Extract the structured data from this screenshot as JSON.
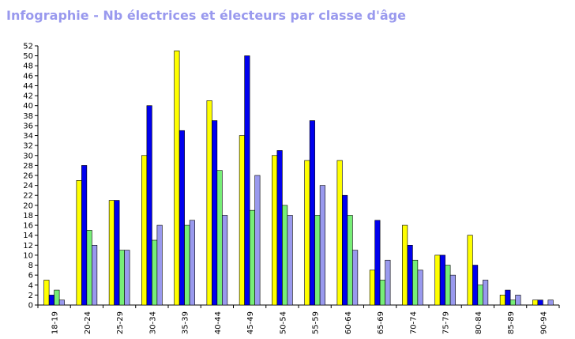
{
  "title": "Infographie - Nb électrices et électeurs par classe d'âge",
  "colors": {
    "title": "#9999ee",
    "axis": "#000000"
  },
  "chart_data": {
    "type": "bar",
    "title": "Infographie - Nb électrices et électeurs par classe d'âge",
    "xlabel": "",
    "ylabel": "",
    "ylim": [
      0,
      52
    ],
    "yticks": [
      0,
      2,
      4,
      6,
      8,
      10,
      12,
      14,
      16,
      18,
      20,
      22,
      24,
      26,
      28,
      30,
      32,
      34,
      36,
      38,
      40,
      42,
      44,
      46,
      48,
      50,
      52
    ],
    "grid": false,
    "legend": "none",
    "categories": [
      "18-19",
      "20-24",
      "25-29",
      "30-34",
      "35-39",
      "40-44",
      "45-49",
      "50-54",
      "55-59",
      "60-64",
      "65-69",
      "70-74",
      "75-79",
      "80-84",
      "85-89",
      "90-94"
    ],
    "series": [
      {
        "color": "#ffff00",
        "values": [
          5,
          25,
          21,
          30,
          51,
          41,
          34,
          30,
          29,
          29,
          7,
          16,
          10,
          14,
          2,
          1
        ]
      },
      {
        "color": "#0000ee",
        "values": [
          2,
          28,
          21,
          40,
          35,
          37,
          50,
          31,
          37,
          22,
          17,
          12,
          10,
          8,
          3,
          1
        ]
      },
      {
        "color": "#77ee77",
        "values": [
          3,
          15,
          11,
          13,
          16,
          27,
          19,
          20,
          18,
          18,
          5,
          9,
          8,
          4,
          1,
          0
        ]
      },
      {
        "color": "#9999ee",
        "values": [
          1,
          12,
          11,
          16,
          17,
          18,
          26,
          18,
          24,
          11,
          9,
          7,
          6,
          5,
          2,
          1
        ]
      }
    ]
  }
}
